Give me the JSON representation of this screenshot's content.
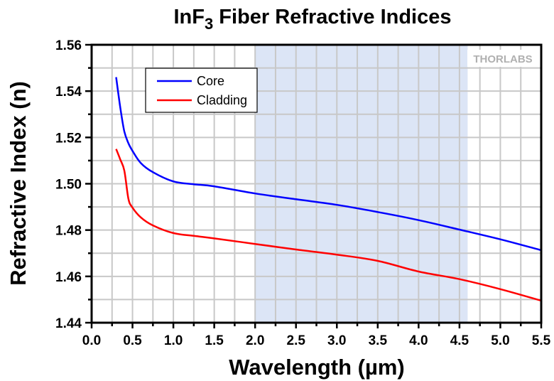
{
  "chart_data": {
    "type": "line",
    "title": "InF",
    "title_subscript": "3",
    "title_suffix": " Fiber Refractive Indices",
    "xlabel": "Wavelength (µm)",
    "ylabel": "Refractive Index (n)",
    "xlim": [
      0.0,
      5.5
    ],
    "ylim": [
      1.44,
      1.56
    ],
    "x_ticks": [
      0.0,
      0.5,
      1.0,
      1.5,
      2.0,
      2.5,
      3.0,
      3.5,
      4.0,
      4.5,
      5.0,
      5.5
    ],
    "x_tick_labels": [
      "0.0",
      "0.5",
      "1.0",
      "1.5",
      "2.0",
      "2.5",
      "3.0",
      "3.5",
      "4.0",
      "4.5",
      "5.0",
      "5.5"
    ],
    "x_minor_step": 0.25,
    "y_ticks": [
      1.44,
      1.46,
      1.48,
      1.5,
      1.52,
      1.54,
      1.56
    ],
    "y_tick_labels": [
      "1.44",
      "1.46",
      "1.48",
      "1.50",
      "1.52",
      "1.54",
      "1.56"
    ],
    "y_minor_step": 0.01,
    "grid": true,
    "legend_position": "top-left",
    "shaded_region": {
      "x_start": 2.0,
      "x_end": 4.6,
      "color": "#dce5f6"
    },
    "watermark": "THORLABS",
    "series": [
      {
        "name": "Core",
        "color": "#0000ff",
        "x": [
          0.3,
          0.35,
          0.4,
          0.45,
          0.5,
          0.6,
          0.75,
          1.0,
          1.25,
          1.5,
          2.0,
          2.5,
          3.0,
          3.5,
          4.0,
          4.5,
          5.0,
          5.5
        ],
        "values": [
          1.546,
          1.533,
          1.5226,
          1.5175,
          1.5142,
          1.509,
          1.505,
          1.501,
          1.4998,
          1.4989,
          1.4958,
          1.4933,
          1.4909,
          1.4878,
          1.4843,
          1.4802,
          1.476,
          1.4713
        ]
      },
      {
        "name": "Cladding",
        "color": "#ff0000",
        "x": [
          0.3,
          0.35,
          0.4,
          0.45,
          0.5,
          0.6,
          0.75,
          1.0,
          1.25,
          1.5,
          2.0,
          2.5,
          3.0,
          3.5,
          4.0,
          4.5,
          5.0,
          5.5
        ],
        "values": [
          1.515,
          1.5105,
          1.5057,
          1.4935,
          1.4897,
          1.4855,
          1.482,
          1.4787,
          1.4775,
          1.4764,
          1.474,
          1.4716,
          1.4694,
          1.4667,
          1.4621,
          1.4588,
          1.4545,
          1.4495
        ]
      }
    ]
  }
}
